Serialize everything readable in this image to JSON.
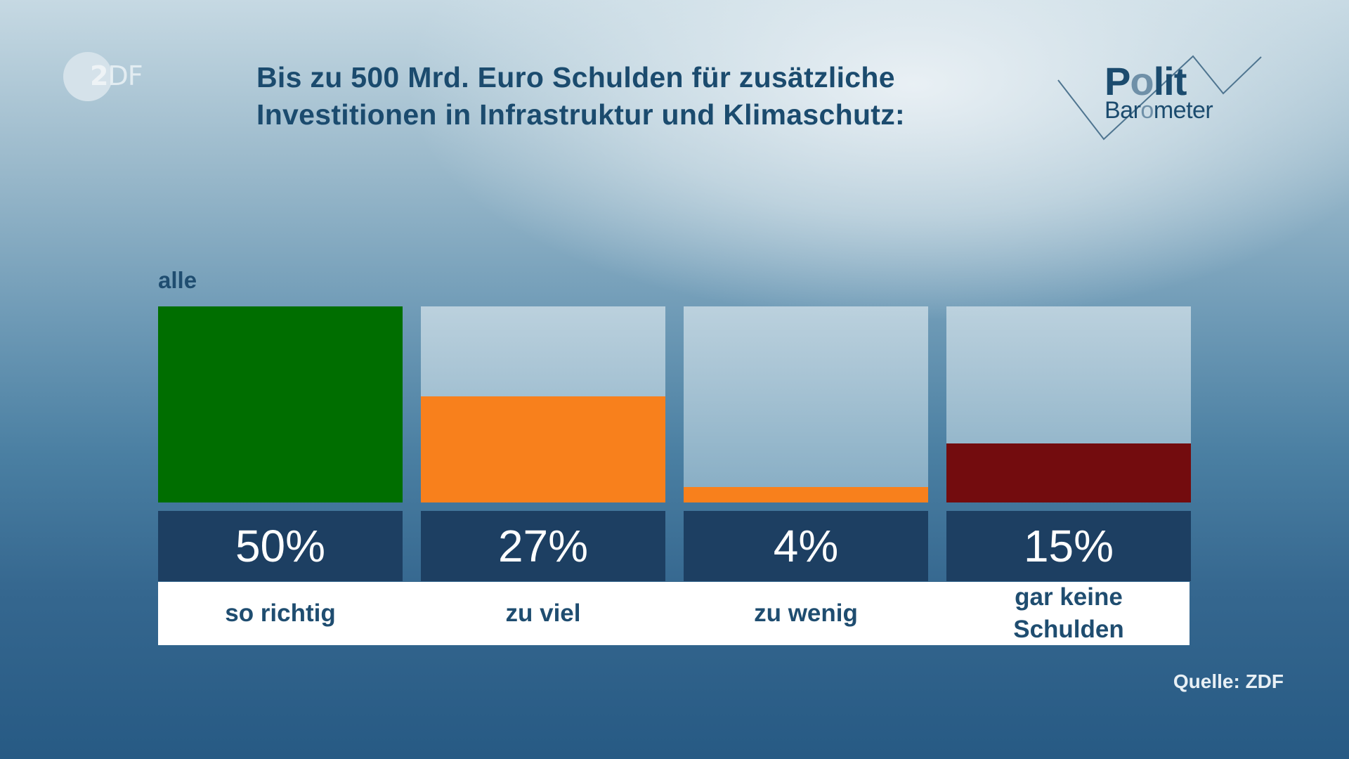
{
  "logo": {
    "broadcaster": "ZDF",
    "broadcaster_parts": [
      "2",
      "DF"
    ],
    "program_line1_parts": [
      "P",
      "o",
      "lit"
    ],
    "program_line2_parts": [
      "Bar",
      "o",
      "meter"
    ]
  },
  "title_lines": [
    "Bis zu 500 Mrd. Euro Schulden für zusätzliche",
    "Investitionen in Infrastruktur und Klimaschutz:"
  ],
  "group_label": "alle",
  "source": "Quelle: ZDF",
  "colors": {
    "so_richtig": "#006e00",
    "zu_viel": "#f8801c",
    "zu_wenig": "#f8801c",
    "gar_keine_schulden": "#730c0e",
    "value_box": "#1d3f62",
    "text_dark": "#1f4d70"
  },
  "chart_data": {
    "type": "bar",
    "title": "Bis zu 500 Mrd. Euro Schulden für zusätzliche Investitionen in Infrastruktur und Klimaschutz:",
    "subtitle": "alle",
    "categories": [
      "so richtig",
      "zu viel",
      "zu wenig",
      "gar keine Schulden"
    ],
    "category_lines": [
      [
        "so richtig"
      ],
      [
        "zu viel"
      ],
      [
        "zu wenig"
      ],
      [
        "gar keine",
        "Schulden"
      ]
    ],
    "values": [
      50,
      27,
      4,
      15
    ],
    "value_labels": [
      "50%",
      "27%",
      "4%",
      "15%"
    ],
    "bar_colors": [
      "#006e00",
      "#f8801c",
      "#f8801c",
      "#730c0e"
    ],
    "unit": "%",
    "ylim": [
      0,
      50
    ],
    "xlabel": "",
    "ylabel": "",
    "grid": false,
    "legend": "none",
    "source": "Quelle: ZDF"
  }
}
